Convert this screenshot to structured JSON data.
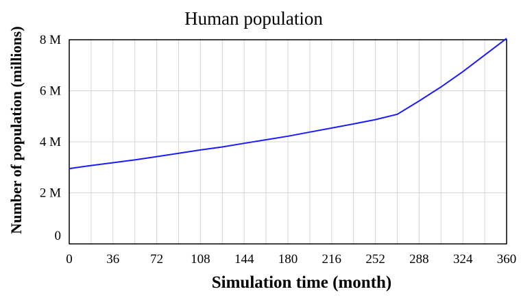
{
  "chart_data": {
    "type": "line",
    "title": "Human population",
    "xlabel": "Simulation time (month)",
    "ylabel": "Number of population (millions)",
    "xlim": [
      0,
      360
    ],
    "ylim": [
      0,
      8
    ],
    "x_ticks": [
      0,
      36,
      72,
      108,
      144,
      180,
      216,
      252,
      288,
      324,
      360
    ],
    "y_ticks": [
      {
        "value": 0,
        "label": "0"
      },
      {
        "value": 2,
        "label": "2 M"
      },
      {
        "value": 4,
        "label": "4 M"
      },
      {
        "value": 6,
        "label": "6 M"
      },
      {
        "value": 8,
        "label": "8 M"
      }
    ],
    "grid": true,
    "series": [
      {
        "color": "#1a1aff",
        "points": [
          [
            0,
            2.95
          ],
          [
            18,
            3.07
          ],
          [
            36,
            3.18
          ],
          [
            54,
            3.29
          ],
          [
            72,
            3.42
          ],
          [
            90,
            3.55
          ],
          [
            108,
            3.68
          ],
          [
            126,
            3.8
          ],
          [
            144,
            3.94
          ],
          [
            162,
            4.08
          ],
          [
            180,
            4.22
          ],
          [
            198,
            4.38
          ],
          [
            216,
            4.54
          ],
          [
            234,
            4.7
          ],
          [
            252,
            4.87
          ],
          [
            270,
            5.08
          ],
          [
            288,
            5.6
          ],
          [
            306,
            6.15
          ],
          [
            324,
            6.75
          ],
          [
            342,
            7.4
          ],
          [
            360,
            8.05
          ]
        ]
      }
    ]
  }
}
